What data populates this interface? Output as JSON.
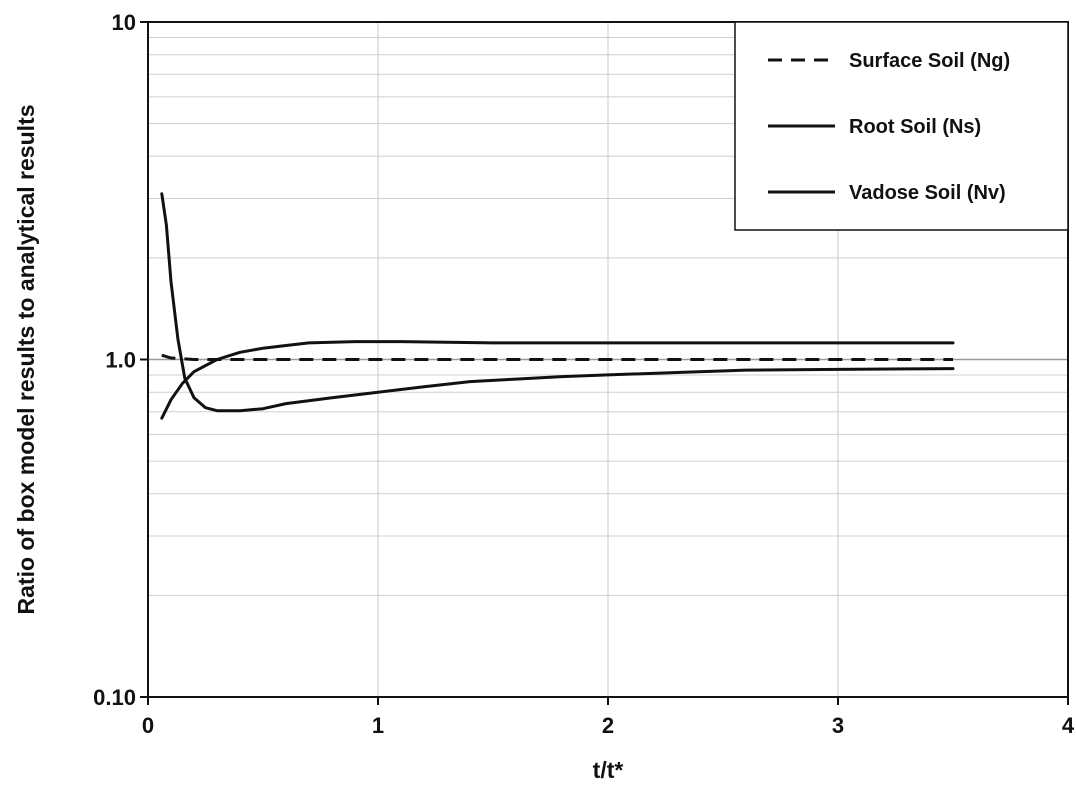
{
  "chart_data": {
    "type": "line",
    "title": "",
    "xlabel": "t/t*",
    "ylabel": "Ratio of box model results  to analytical results",
    "xlim": [
      0,
      4
    ],
    "ylim": [
      0.1,
      10
    ],
    "yscale": "log",
    "x_ticks": [
      "0",
      "1",
      "2",
      "3",
      "4"
    ],
    "y_ticks": [
      "0.10",
      "1.0",
      "10"
    ],
    "grid": true,
    "legend_position": "top-right",
    "series": [
      {
        "name": "Surface Soil (Ng)",
        "style": "dashed",
        "color": "#111111",
        "points": [
          [
            0.06,
            1.03
          ],
          [
            0.1,
            1.01
          ],
          [
            0.2,
            1.0
          ],
          [
            0.5,
            1.0
          ],
          [
            1.0,
            1.0
          ],
          [
            1.5,
            1.0
          ],
          [
            2.0,
            1.0
          ],
          [
            2.5,
            1.0
          ],
          [
            3.0,
            1.0
          ],
          [
            3.5,
            1.0
          ]
        ]
      },
      {
        "name": "Root Soil (Ns)",
        "style": "solid",
        "color": "#111111",
        "points": [
          [
            0.06,
            3.1
          ],
          [
            0.08,
            2.5
          ],
          [
            0.1,
            1.7
          ],
          [
            0.13,
            1.15
          ],
          [
            0.16,
            0.88
          ],
          [
            0.2,
            0.77
          ],
          [
            0.25,
            0.72
          ],
          [
            0.3,
            0.705
          ],
          [
            0.4,
            0.705
          ],
          [
            0.5,
            0.715
          ],
          [
            0.6,
            0.74
          ],
          [
            0.8,
            0.77
          ],
          [
            1.0,
            0.8
          ],
          [
            1.2,
            0.83
          ],
          [
            1.4,
            0.86
          ],
          [
            1.6,
            0.875
          ],
          [
            1.8,
            0.89
          ],
          [
            2.0,
            0.9
          ],
          [
            2.3,
            0.915
          ],
          [
            2.6,
            0.93
          ],
          [
            3.0,
            0.935
          ],
          [
            3.5,
            0.94
          ]
        ]
      },
      {
        "name": "Vadose Soil (Nv)",
        "style": "solid",
        "color": "#111111",
        "points": [
          [
            0.06,
            0.67
          ],
          [
            0.1,
            0.76
          ],
          [
            0.15,
            0.85
          ],
          [
            0.2,
            0.92
          ],
          [
            0.3,
            1.0
          ],
          [
            0.4,
            1.05
          ],
          [
            0.5,
            1.08
          ],
          [
            0.6,
            1.1
          ],
          [
            0.7,
            1.12
          ],
          [
            0.9,
            1.13
          ],
          [
            1.1,
            1.13
          ],
          [
            1.3,
            1.125
          ],
          [
            1.5,
            1.12
          ],
          [
            2.0,
            1.12
          ],
          [
            2.5,
            1.12
          ],
          [
            3.0,
            1.12
          ],
          [
            3.5,
            1.12
          ]
        ]
      }
    ]
  }
}
